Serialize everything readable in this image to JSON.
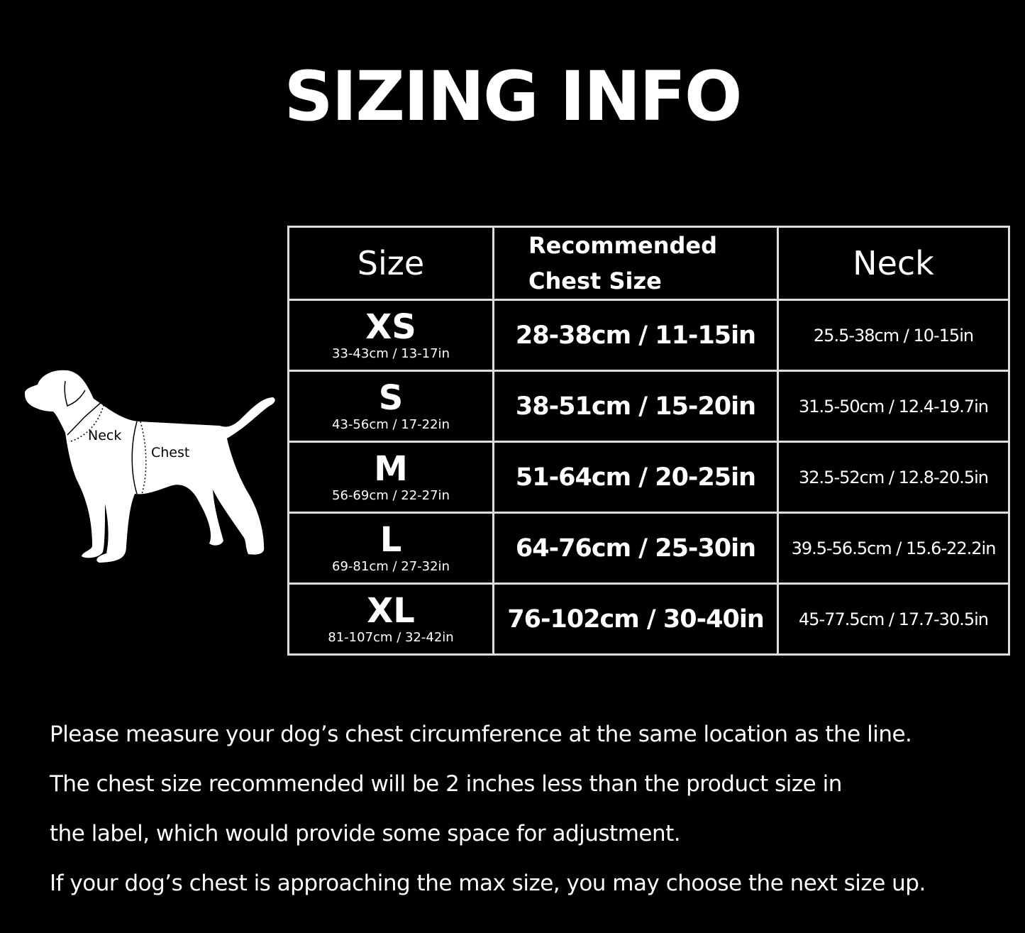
{
  "title": "SIZING INFO",
  "diagram": {
    "neck_label": "Neck",
    "chest_label": "Chest"
  },
  "table": {
    "headers": {
      "size": "Size",
      "chest_line1": "Recommended",
      "chest_line2": "Chest Size",
      "neck": "Neck"
    },
    "rows": [
      {
        "size": "XS",
        "product": "33-43cm / 13-17in",
        "chest": "28-38cm / 11-15in",
        "neck": "25.5-38cm / 10-15in"
      },
      {
        "size": "S",
        "product": "43-56cm / 17-22in",
        "chest": "38-51cm / 15-20in",
        "neck": "31.5-50cm / 12.4-19.7in"
      },
      {
        "size": "M",
        "product": "56-69cm / 22-27in",
        "chest": "51-64cm / 20-25in",
        "neck": "32.5-52cm / 12.8-20.5in"
      },
      {
        "size": "L",
        "product": "69-81cm / 27-32in",
        "chest": "64-76cm / 25-30in",
        "neck": "39.5-56.5cm / 15.6-22.2in"
      },
      {
        "size": "XL",
        "product": "81-107cm / 32-42in",
        "chest": "76-102cm / 30-40in",
        "neck": "45-77.5cm / 17.7-30.5in"
      }
    ]
  },
  "notes": [
    "Please measure your dog’s chest circumference at the same location as the line.",
    "The chest size recommended will be 2 inches less than the product size in",
    "the label, which would provide some space for adjustment.",
    "If your dog’s chest is approaching the max size, you may choose the next size up."
  ],
  "colors": {
    "background": "#000000",
    "text": "#ffffff",
    "border": "#dddddd"
  }
}
